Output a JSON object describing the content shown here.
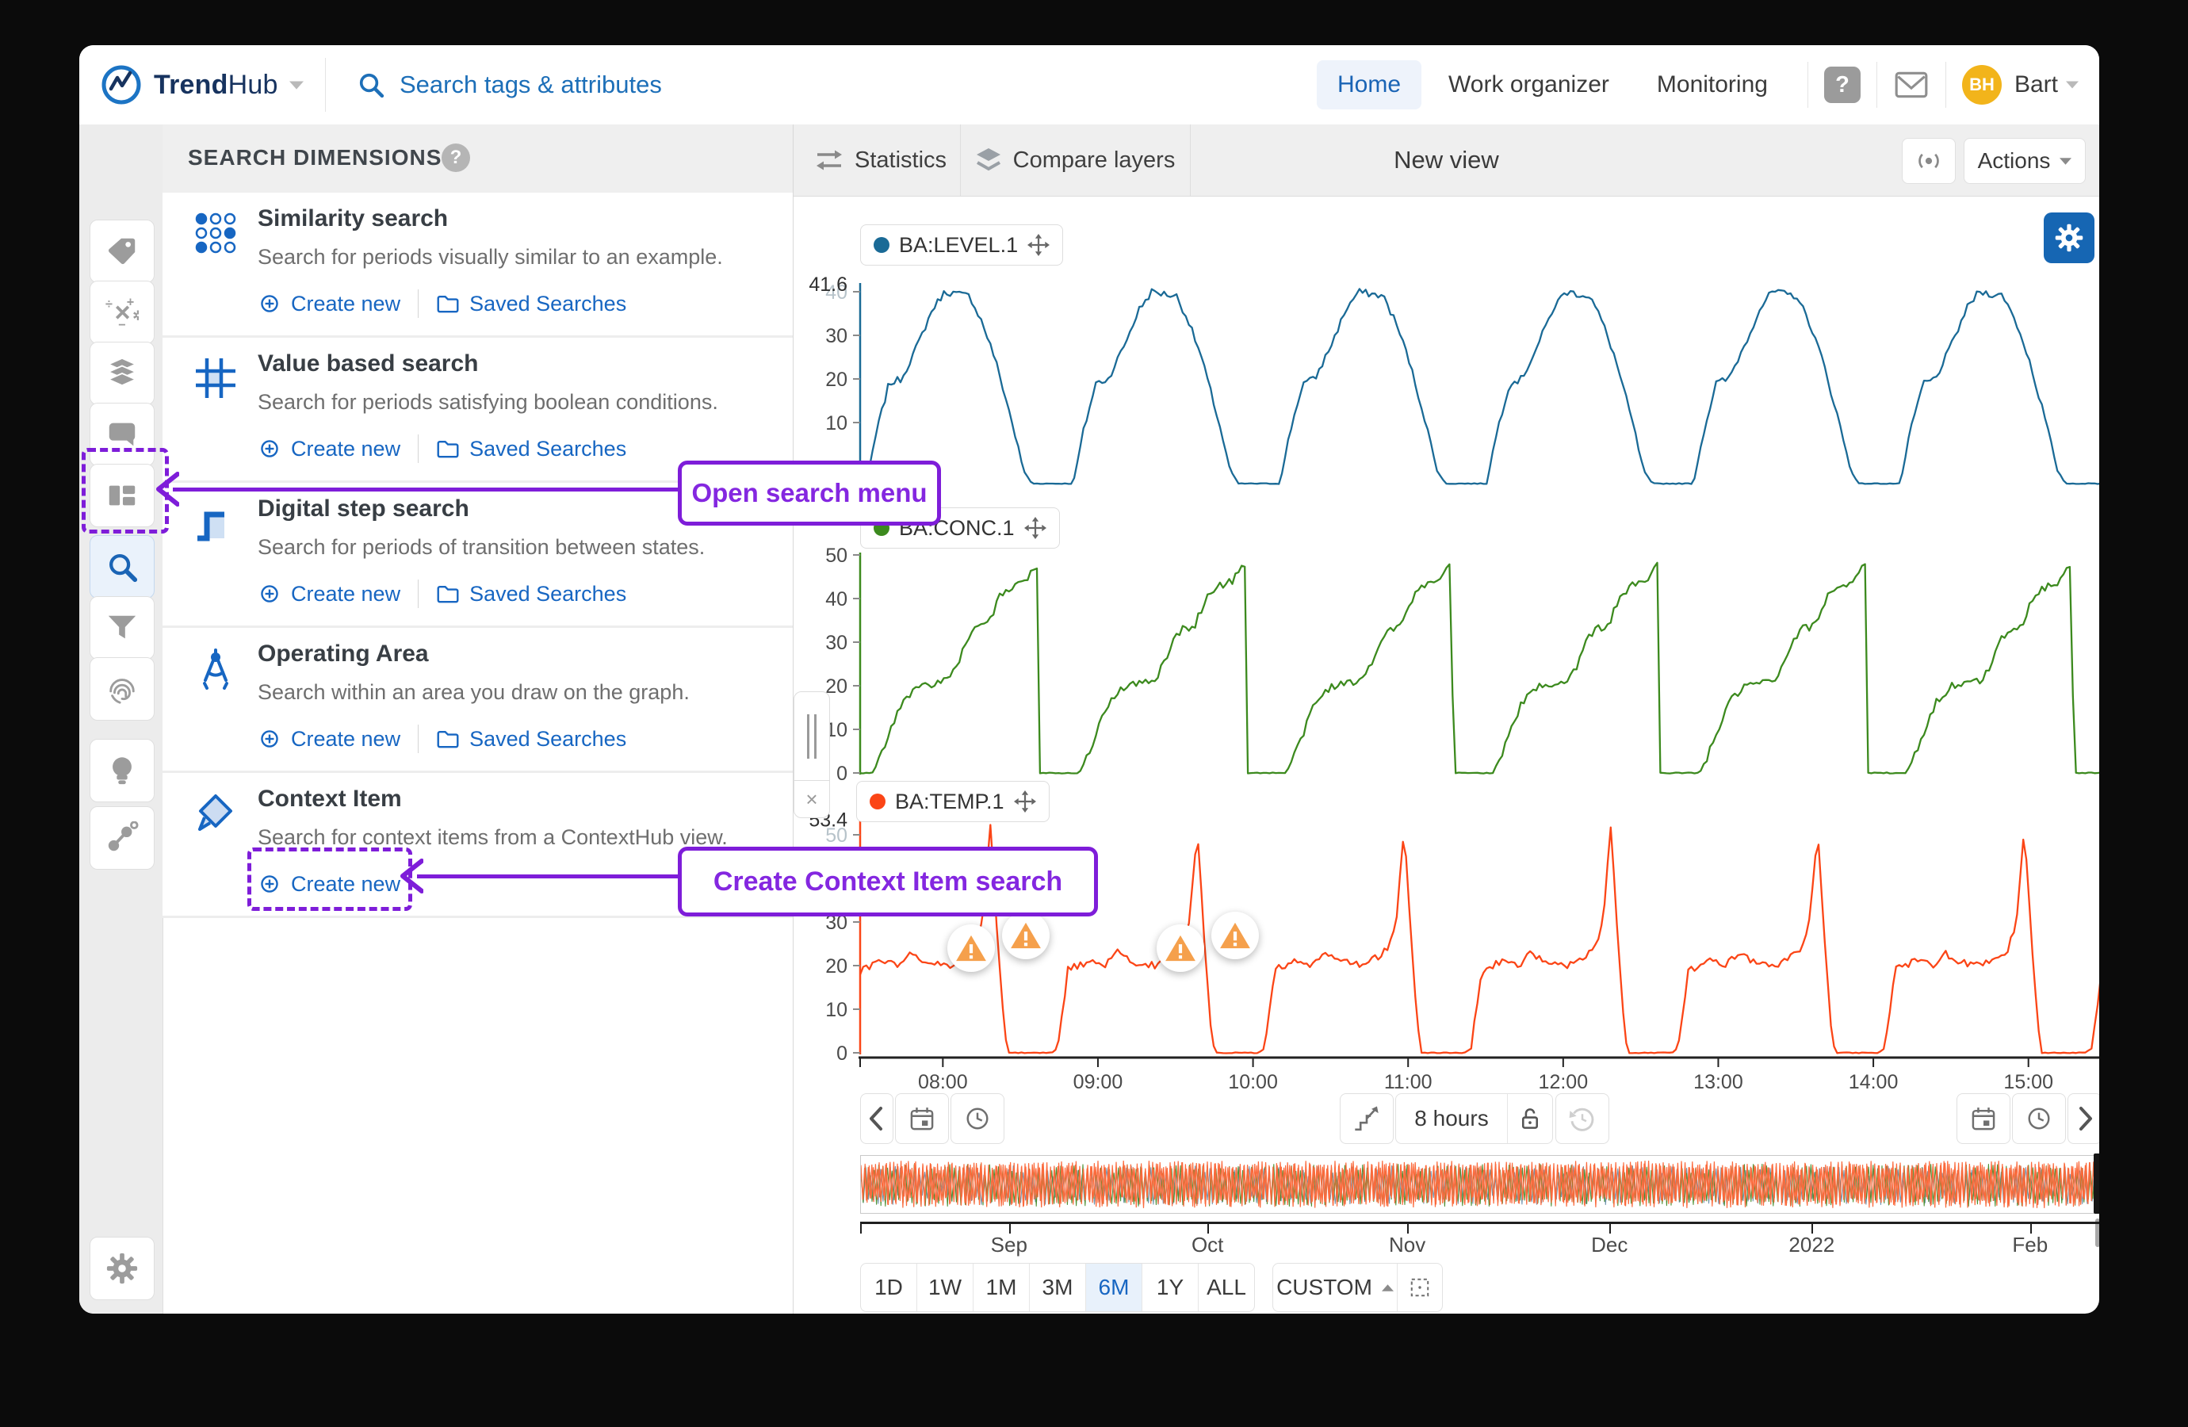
{
  "colors": {
    "accent_blue": "#1766c2",
    "annotation_purple": "#7e1dd9",
    "active_nav_blue": "#1a64b5",
    "warning_orange": "#F5A04C",
    "avatar_yellow": "#f2b41b"
  },
  "topbar": {
    "brand_bold": "Trend",
    "brand_light": "Hub",
    "search_placeholder": "Search tags & attributes",
    "nav": [
      {
        "label": "Home",
        "active": true
      },
      {
        "label": "Work organizer",
        "active": false
      },
      {
        "label": "Monitoring",
        "active": false
      }
    ],
    "avatar_initials": "BH",
    "user_name": "Bart"
  },
  "sidebar": {
    "icons": [
      "tag",
      "calculation",
      "layers",
      "comment",
      "dashboard",
      "search",
      "filter",
      "fingerprint",
      "idea",
      "graph",
      "settings"
    ],
    "active": "search"
  },
  "panel": {
    "header": "SEARCH DIMENSIONS",
    "create_label": "Create new",
    "saved_label": "Saved Searches",
    "items": [
      {
        "icon": "similarity",
        "title": "Similarity search",
        "description": "Search for periods visually similar to an example.",
        "actions": [
          "create",
          "saved"
        ]
      },
      {
        "icon": "value",
        "title": "Value based search",
        "description": "Search for periods satisfying boolean conditions.",
        "actions": [
          "create",
          "saved"
        ]
      },
      {
        "icon": "step",
        "title": "Digital step search",
        "description": "Search for periods of transition between states.",
        "actions": [
          "create",
          "saved"
        ]
      },
      {
        "icon": "area",
        "title": "Operating Area",
        "description": "Search within an area you draw on the graph.",
        "actions": [
          "create",
          "saved"
        ]
      },
      {
        "icon": "context",
        "title": "Context Item",
        "description": "Search for context items from a ContextHub view.",
        "actions": [
          "create"
        ],
        "highlight_create": true
      }
    ]
  },
  "chart_toolbar": {
    "statistics": "Statistics",
    "compare_layers": "Compare layers",
    "view_title": "New view",
    "actions_label": "Actions"
  },
  "annotations": {
    "open_search": "Open search menu",
    "create_context": "Create Context Item search"
  },
  "chart_data": {
    "type": "line",
    "window_minutes": 480,
    "x_ticks": [
      "08:00",
      "09:00",
      "10:00",
      "11:00",
      "12:00",
      "13:00",
      "14:00",
      "15:00"
    ],
    "series": [
      {
        "tag": "BA:LEVEL.1",
        "color": "#1a6a96",
        "period_min": 80,
        "phase_min": -4,
        "noise": 0.8,
        "y_ticks": [
          10,
          20,
          30,
          40
        ],
        "sub_tick": 40,
        "max_label": "41.6",
        "max_value": 41.6,
        "keypoints": [
          [
            0,
            -4
          ],
          [
            0.08,
            -4
          ],
          [
            0.13,
            8
          ],
          [
            0.19,
            19
          ],
          [
            0.25,
            20
          ],
          [
            0.33,
            28
          ],
          [
            0.4,
            36
          ],
          [
            0.46,
            40
          ],
          [
            0.58,
            39
          ],
          [
            0.64,
            33
          ],
          [
            0.7,
            25
          ],
          [
            0.78,
            11
          ],
          [
            0.84,
            -1
          ],
          [
            0.88,
            -4
          ],
          [
            1,
            -4
          ]
        ]
      },
      {
        "tag": "BA:CONC.1",
        "color": "#3c8a1e",
        "period_min": 80,
        "phase_min": 0,
        "noise": 0.9,
        "y_ticks": [
          0,
          10,
          20,
          30,
          40,
          50
        ],
        "sub_tick": null,
        "max_label": null,
        "max_value": null,
        "keypoints": [
          [
            0,
            0
          ],
          [
            0.06,
            0
          ],
          [
            0.1,
            4
          ],
          [
            0.2,
            16
          ],
          [
            0.28,
            20
          ],
          [
            0.42,
            21
          ],
          [
            0.47,
            25
          ],
          [
            0.52,
            31
          ],
          [
            0.56,
            33
          ],
          [
            0.62,
            34
          ],
          [
            0.68,
            41
          ],
          [
            0.74,
            43
          ],
          [
            0.8,
            44
          ],
          [
            0.86,
            48
          ],
          [
            0.868,
            0
          ],
          [
            1,
            0
          ]
        ]
      },
      {
        "tag": "BA:TEMP.1",
        "color": "#fb4516",
        "period_min": 80,
        "phase_min": -6,
        "noise": 0.8,
        "y_ticks": [
          0,
          10,
          20,
          30,
          40,
          50
        ],
        "sub_tick": 50,
        "max_label": "53.4",
        "max_value": 53.4,
        "keypoints": [
          [
            0,
            0
          ],
          [
            0.03,
            1
          ],
          [
            0.08,
            19
          ],
          [
            0.18,
            21
          ],
          [
            0.26,
            20
          ],
          [
            0.32,
            23
          ],
          [
            0.38,
            21
          ],
          [
            0.5,
            20
          ],
          [
            0.58,
            22
          ],
          [
            0.63,
            24
          ],
          [
            0.67,
            31
          ],
          [
            0.705,
            52
          ],
          [
            0.74,
            26
          ],
          [
            0.77,
            6
          ],
          [
            0.79,
            0
          ],
          [
            1,
            0
          ]
        ],
        "warnings": [
          {
            "t_min": 43,
            "value": 24
          },
          {
            "t_min": 64,
            "value": 27
          },
          {
            "t_min": 124,
            "value": 24
          },
          {
            "t_min": 145,
            "value": 27
          }
        ]
      }
    ],
    "overview": {
      "months": [
        {
          "label": "Sep",
          "pos": 0.12
        },
        {
          "label": "Oct",
          "pos": 0.28
        },
        {
          "label": "Nov",
          "pos": 0.441
        },
        {
          "label": "Dec",
          "pos": 0.604
        },
        {
          "label": "2022",
          "pos": 0.767
        },
        {
          "label": "Feb",
          "pos": 0.943
        }
      ]
    }
  },
  "timebar": {
    "duration_label": "8 hours",
    "ranges": [
      "1D",
      "1W",
      "1M",
      "3M",
      "6M",
      "1Y",
      "ALL"
    ],
    "active_range": "6M",
    "custom_label": "CUSTOM"
  }
}
